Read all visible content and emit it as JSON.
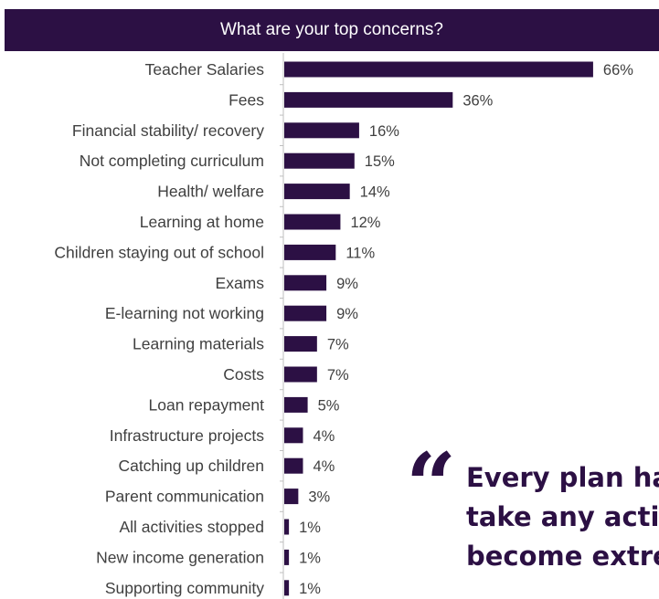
{
  "colors": {
    "header_bg": "#2c1044",
    "bar": "#2c1044",
    "label": "#404040",
    "quote": "#2c1044",
    "axis": "#bfbfbf"
  },
  "chart_data": {
    "type": "bar",
    "orientation": "horizontal",
    "title": "What are your top concerns?",
    "unit": "%",
    "categories": [
      "Teacher Salaries",
      "Fees",
      "Financial stability/ recovery",
      "Not completing curriculum",
      "Health/ welfare",
      "Learning at home",
      "Children staying out of school",
      "Exams",
      "E-learning not working",
      "Learning materials",
      "Costs",
      "Loan repayment",
      "Infrastructure projects",
      "Catching up children",
      "Parent communication",
      "All activities stopped",
      "New income generation",
      "Supporting community"
    ],
    "values": [
      66,
      36,
      16,
      15,
      14,
      12,
      11,
      9,
      9,
      7,
      7,
      5,
      4,
      4,
      3,
      1,
      1,
      1
    ],
    "labels": [
      "66%",
      "36%",
      "16%",
      "15%",
      "14%",
      "12%",
      "11%",
      "9%",
      "9%",
      "7%",
      "7%",
      "5%",
      "4%",
      "4%",
      "3%",
      "1%",
      "1%",
      "1%"
    ],
    "xlim": [
      0,
      70
    ],
    "grid": false,
    "legend": "none"
  },
  "quote": {
    "mark": "“",
    "lines": [
      "Every plan has been halted, we cannot",
      "take any action as the situation has",
      "become extremely difficult."
    ]
  }
}
